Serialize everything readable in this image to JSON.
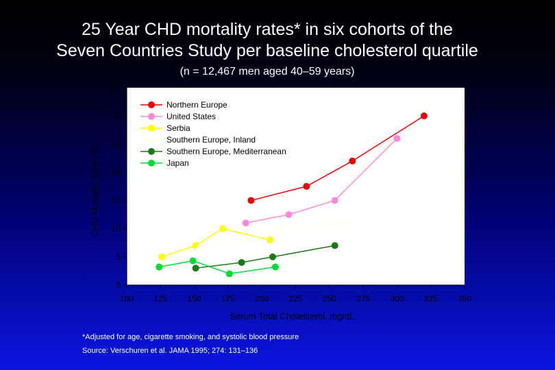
{
  "slide": {
    "title_line1": "25 Year CHD mortality rates* in six cohorts of the",
    "title_line2": "Seven Countries Study per baseline cholesterol quartile",
    "subtitle": "(n = 12,467 men aged 40–59 years)",
    "footnote": "*Adjusted for age, cigarette smoking, and systolic blood pressure",
    "source": "Source: Verschuren et al. JAMA 1995; 274: 131–136"
  },
  "chart_data": {
    "type": "line",
    "xlabel": "Serum Total Cholesterol, mg/dL",
    "ylabel": "CHD Mortality Rate, %",
    "xlim": [
      100,
      350
    ],
    "ylim": [
      0,
      35
    ],
    "xticks": [
      100,
      125,
      150,
      175,
      200,
      225,
      250,
      275,
      300,
      325,
      350
    ],
    "yticks": [
      0,
      5,
      10,
      15,
      20,
      25,
      30,
      35
    ],
    "legend_position": "top-left",
    "colors": {
      "axis": "#000000",
      "background": "#ffffff"
    },
    "series": [
      {
        "name": "Northern Europe",
        "color": "#ee0000",
        "x": [
          192,
          233,
          267,
          320
        ],
        "y": [
          15,
          17.5,
          22,
          30
        ]
      },
      {
        "name": "United States",
        "color": "#ff88dd",
        "x": [
          188,
          220,
          254,
          300
        ],
        "y": [
          11,
          12.5,
          15,
          26
        ]
      },
      {
        "name": "Serbia",
        "color": "#ffff00",
        "x": [
          126,
          151,
          171,
          206
        ],
        "y": [
          5,
          7,
          10,
          8
        ]
      },
      {
        "name": "Southern Europe, Inland",
        "color": "#ffffee",
        "x": [
          154,
          189,
          215,
          259
        ],
        "y": [
          6.5,
          8,
          10.3,
          11
        ]
      },
      {
        "name": "Southern Europe, Mediterranean",
        "color": "#1a7a1a",
        "x": [
          151,
          185,
          208,
          254
        ],
        "y": [
          3,
          4,
          5,
          7
        ]
      },
      {
        "name": "Japan",
        "color": "#00dd33",
        "x": [
          124,
          149,
          176,
          210
        ],
        "y": [
          3.2,
          4.3,
          2,
          3.2
        ]
      }
    ]
  }
}
